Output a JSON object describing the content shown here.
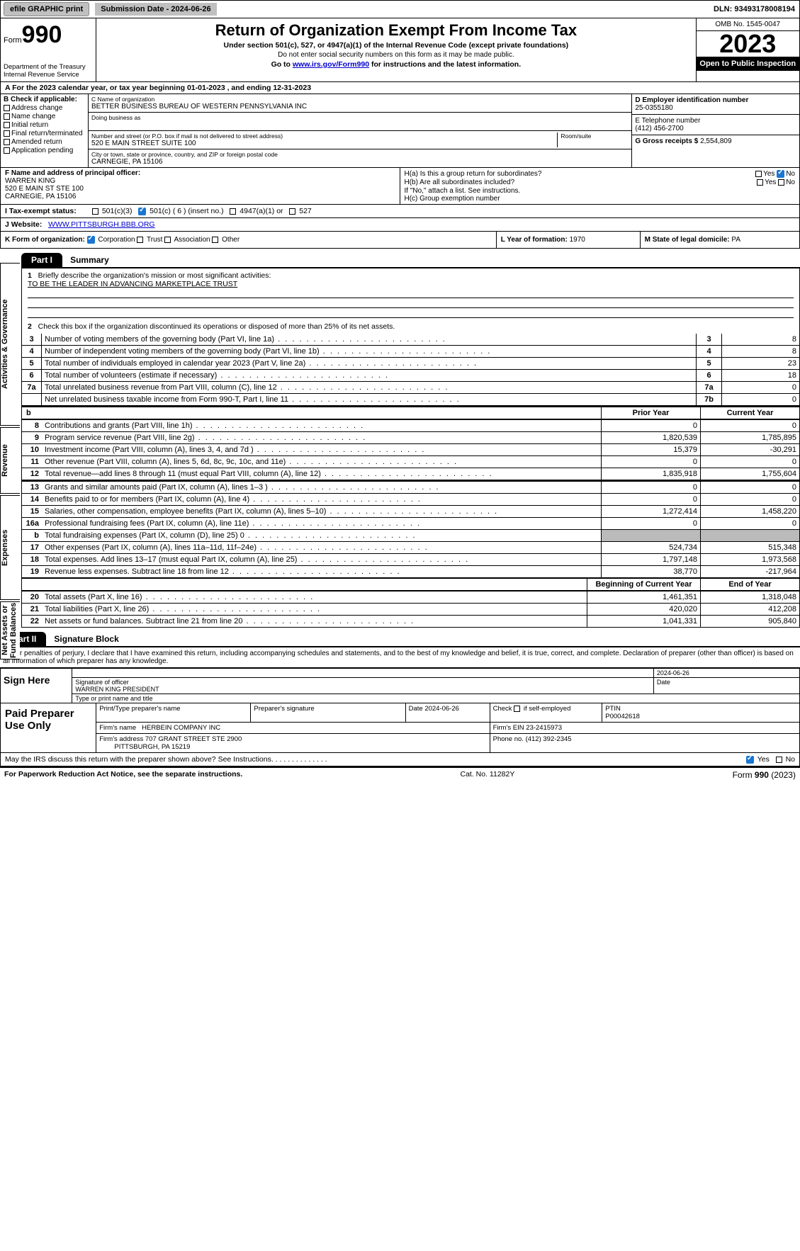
{
  "colors": {
    "accent": "#1976d2",
    "shade": "#bbbbbb",
    "link": "#0000cc"
  },
  "topbar": {
    "efile": "efile GRAPHIC print",
    "sub_label": "Submission Date - ",
    "sub_date": "2024-06-26",
    "dln_label": "DLN: ",
    "dln": "93493178008194"
  },
  "header": {
    "form": "Form",
    "num": "990",
    "dept": "Department of the Treasury\nInternal Revenue Service",
    "title": "Return of Organization Exempt From Income Tax",
    "sub1": "Under section 501(c), 527, or 4947(a)(1) of the Internal Revenue Code (except private foundations)",
    "sub2": "Do not enter social security numbers on this form as it may be made public.",
    "sub3_pre": "Go to ",
    "sub3_link": "www.irs.gov/Form990",
    "sub3_post": " for instructions and the latest information.",
    "omb": "OMB No. 1545-0047",
    "year": "2023",
    "open": "Open to Public Inspection"
  },
  "line_a": "A For the 2023 calendar year, or tax year beginning 01-01-2023     , and ending 12-31-2023",
  "box_b": {
    "title": "B Check if applicable:",
    "items": [
      "Address change",
      "Name change",
      "Initial return",
      "Final return/terminated",
      "Amended return",
      "Application pending"
    ]
  },
  "box_c": {
    "name_lbl": "C Name of organization",
    "name": "BETTER BUSINESS BUREAU OF WESTERN PENNSYLVANIA INC",
    "dba_lbl": "Doing business as",
    "addr_lbl": "Number and street (or P.O. box if mail is not delivered to street address)",
    "addr": "520 E MAIN STREET SUITE 100",
    "room_lbl": "Room/suite",
    "city_lbl": "City or town, state or province, country, and ZIP or foreign postal code",
    "city": "CARNEGIE, PA  15106"
  },
  "box_d": {
    "ein_lbl": "D Employer identification number",
    "ein": "25-0355180",
    "tel_lbl": "E Telephone number",
    "tel": "(412) 456-2700",
    "gross_lbl": "G Gross receipts $ ",
    "gross": "2,554,809"
  },
  "box_f": {
    "lbl": "F  Name and address of principal officer:",
    "name": "WARREN KING",
    "addr1": "520 E MAIN ST STE 100",
    "addr2": "CARNEGIE, PA  15106"
  },
  "box_h": {
    "a": "H(a)  Is this a group return for subordinates?",
    "b": "H(b)  Are all subordinates included?",
    "note": "If \"No,\" attach a list. See instructions.",
    "c": "H(c)  Group exemption number",
    "yes": "Yes",
    "no": "No"
  },
  "tax": {
    "lbl": "I   Tax-exempt status:",
    "c3": "501(c)(3)",
    "c_ins": "501(c) ( 6 ) (insert no.)",
    "a4947": "4947(a)(1) or",
    "s527": "527"
  },
  "web": {
    "lbl": "J   Website:",
    "url": "WWW.PITTSBURGH.BBB.ORG"
  },
  "row_k": {
    "lbl": "K Form of organization:",
    "corp": "Corporation",
    "trust": "Trust",
    "assoc": "Association",
    "other": "Other",
    "l_lbl": "L Year of formation: ",
    "l_val": "1970",
    "m_lbl": "M State of legal domicile: ",
    "m_val": "PA"
  },
  "part1": {
    "hdr": "Part I",
    "title": "Summary",
    "q1": "Briefly describe the organization's mission or most significant activities:",
    "mission": "TO BE THE LEADER IN ADVANCING MARKETPLACE TRUST",
    "q2": "Check this box      if the organization discontinued its operations or disposed of more than 25% of its net assets.",
    "lines": [
      {
        "n": "3",
        "d": "Number of voting members of the governing body (Part VI, line 1a)",
        "ln": "3",
        "v": "8"
      },
      {
        "n": "4",
        "d": "Number of independent voting members of the governing body (Part VI, line 1b)",
        "ln": "4",
        "v": "8"
      },
      {
        "n": "5",
        "d": "Total number of individuals employed in calendar year 2023 (Part V, line 2a)",
        "ln": "5",
        "v": "23"
      },
      {
        "n": "6",
        "d": "Total number of volunteers (estimate if necessary)",
        "ln": "6",
        "v": "18"
      },
      {
        "n": "7a",
        "d": "Total unrelated business revenue from Part VIII, column (C), line 12",
        "ln": "7a",
        "v": "0"
      },
      {
        "n": "",
        "d": "Net unrelated business taxable income from Form 990-T, Part I, line 11",
        "ln": "7b",
        "v": "0"
      }
    ],
    "side_ag": "Activities & Governance",
    "side_rev": "Revenue",
    "side_exp": "Expenses",
    "side_net": "Net Assets or Fund Balances",
    "col_prior": "Prior Year",
    "col_curr": "Current Year",
    "col_beg": "Beginning of Current Year",
    "col_end": "End of Year",
    "rev": [
      {
        "n": "8",
        "d": "Contributions and grants (Part VIII, line 1h)",
        "p": "0",
        "c": "0"
      },
      {
        "n": "9",
        "d": "Program service revenue (Part VIII, line 2g)",
        "p": "1,820,539",
        "c": "1,785,895"
      },
      {
        "n": "10",
        "d": "Investment income (Part VIII, column (A), lines 3, 4, and 7d )",
        "p": "15,379",
        "c": "-30,291"
      },
      {
        "n": "11",
        "d": "Other revenue (Part VIII, column (A), lines 5, 6d, 8c, 9c, 10c, and 11e)",
        "p": "0",
        "c": "0"
      },
      {
        "n": "12",
        "d": "Total revenue—add lines 8 through 11 (must equal Part VIII, column (A), line 12)",
        "p": "1,835,918",
        "c": "1,755,604"
      }
    ],
    "exp": [
      {
        "n": "13",
        "d": "Grants and similar amounts paid (Part IX, column (A), lines 1–3 )",
        "p": "0",
        "c": "0"
      },
      {
        "n": "14",
        "d": "Benefits paid to or for members (Part IX, column (A), line 4)",
        "p": "0",
        "c": "0"
      },
      {
        "n": "15",
        "d": "Salaries, other compensation, employee benefits (Part IX, column (A), lines 5–10)",
        "p": "1,272,414",
        "c": "1,458,220"
      },
      {
        "n": "16a",
        "d": "Professional fundraising fees (Part IX, column (A), line 11e)",
        "p": "0",
        "c": "0"
      },
      {
        "n": "b",
        "d": "Total fundraising expenses (Part IX, column (D), line 25) 0",
        "p": "shade",
        "c": "shade"
      },
      {
        "n": "17",
        "d": "Other expenses (Part IX, column (A), lines 11a–11d, 11f–24e)",
        "p": "524,734",
        "c": "515,348"
      },
      {
        "n": "18",
        "d": "Total expenses. Add lines 13–17 (must equal Part IX, column (A), line 25)",
        "p": "1,797,148",
        "c": "1,973,568"
      },
      {
        "n": "19",
        "d": "Revenue less expenses. Subtract line 18 from line 12",
        "p": "38,770",
        "c": "-217,964"
      }
    ],
    "net": [
      {
        "n": "20",
        "d": "Total assets (Part X, line 16)",
        "p": "1,461,351",
        "c": "1,318,048"
      },
      {
        "n": "21",
        "d": "Total liabilities (Part X, line 26)",
        "p": "420,020",
        "c": "412,208"
      },
      {
        "n": "22",
        "d": "Net assets or fund balances. Subtract line 21 from line 20",
        "p": "1,041,331",
        "c": "905,840"
      }
    ]
  },
  "part2": {
    "hdr": "Part II",
    "title": "Signature Block",
    "perjury": "Under penalties of perjury, I declare that I have examined this return, including accompanying schedules and statements, and to the best of my knowledge and belief, it is true, correct, and complete. Declaration of preparer (other than officer) is based on all information of which preparer has any knowledge.",
    "sign_here": "Sign Here",
    "sig_date": "2024-06-26",
    "sig_lbl": "Signature of officer",
    "date_lbl": "Date",
    "officer": "WARREN KING  PRESIDENT",
    "type_lbl": "Type or print name and title",
    "paid": "Paid Preparer Use Only",
    "pt1": "Print/Type preparer's name",
    "pt2": "Preparer's signature",
    "pt3": "Date 2024-06-26",
    "pt4_pre": "Check",
    "pt4_post": "if self-employed",
    "ptin_lbl": "PTIN",
    "ptin": "P00042618",
    "firm_lbl": "Firm's name",
    "firm": "HERBEIN COMPANY INC",
    "firm_ein_lbl": "Firm's EIN",
    "firm_ein": "23-2415973",
    "firm_addr_lbl": "Firm's address",
    "firm_addr": "707 GRANT STREET STE 2900",
    "firm_city": "PITTSBURGH, PA  15219",
    "phone_lbl": "Phone no. ",
    "phone": "(412) 392-2345",
    "discuss": "May the IRS discuss this return with the preparer shown above? See Instructions.",
    "yes": "Yes",
    "no": "No"
  },
  "footer": {
    "left": "For Paperwork Reduction Act Notice, see the separate instructions.",
    "mid": "Cat. No. 11282Y",
    "right_pre": "Form ",
    "right_b": "990",
    "right_post": " (2023)"
  }
}
